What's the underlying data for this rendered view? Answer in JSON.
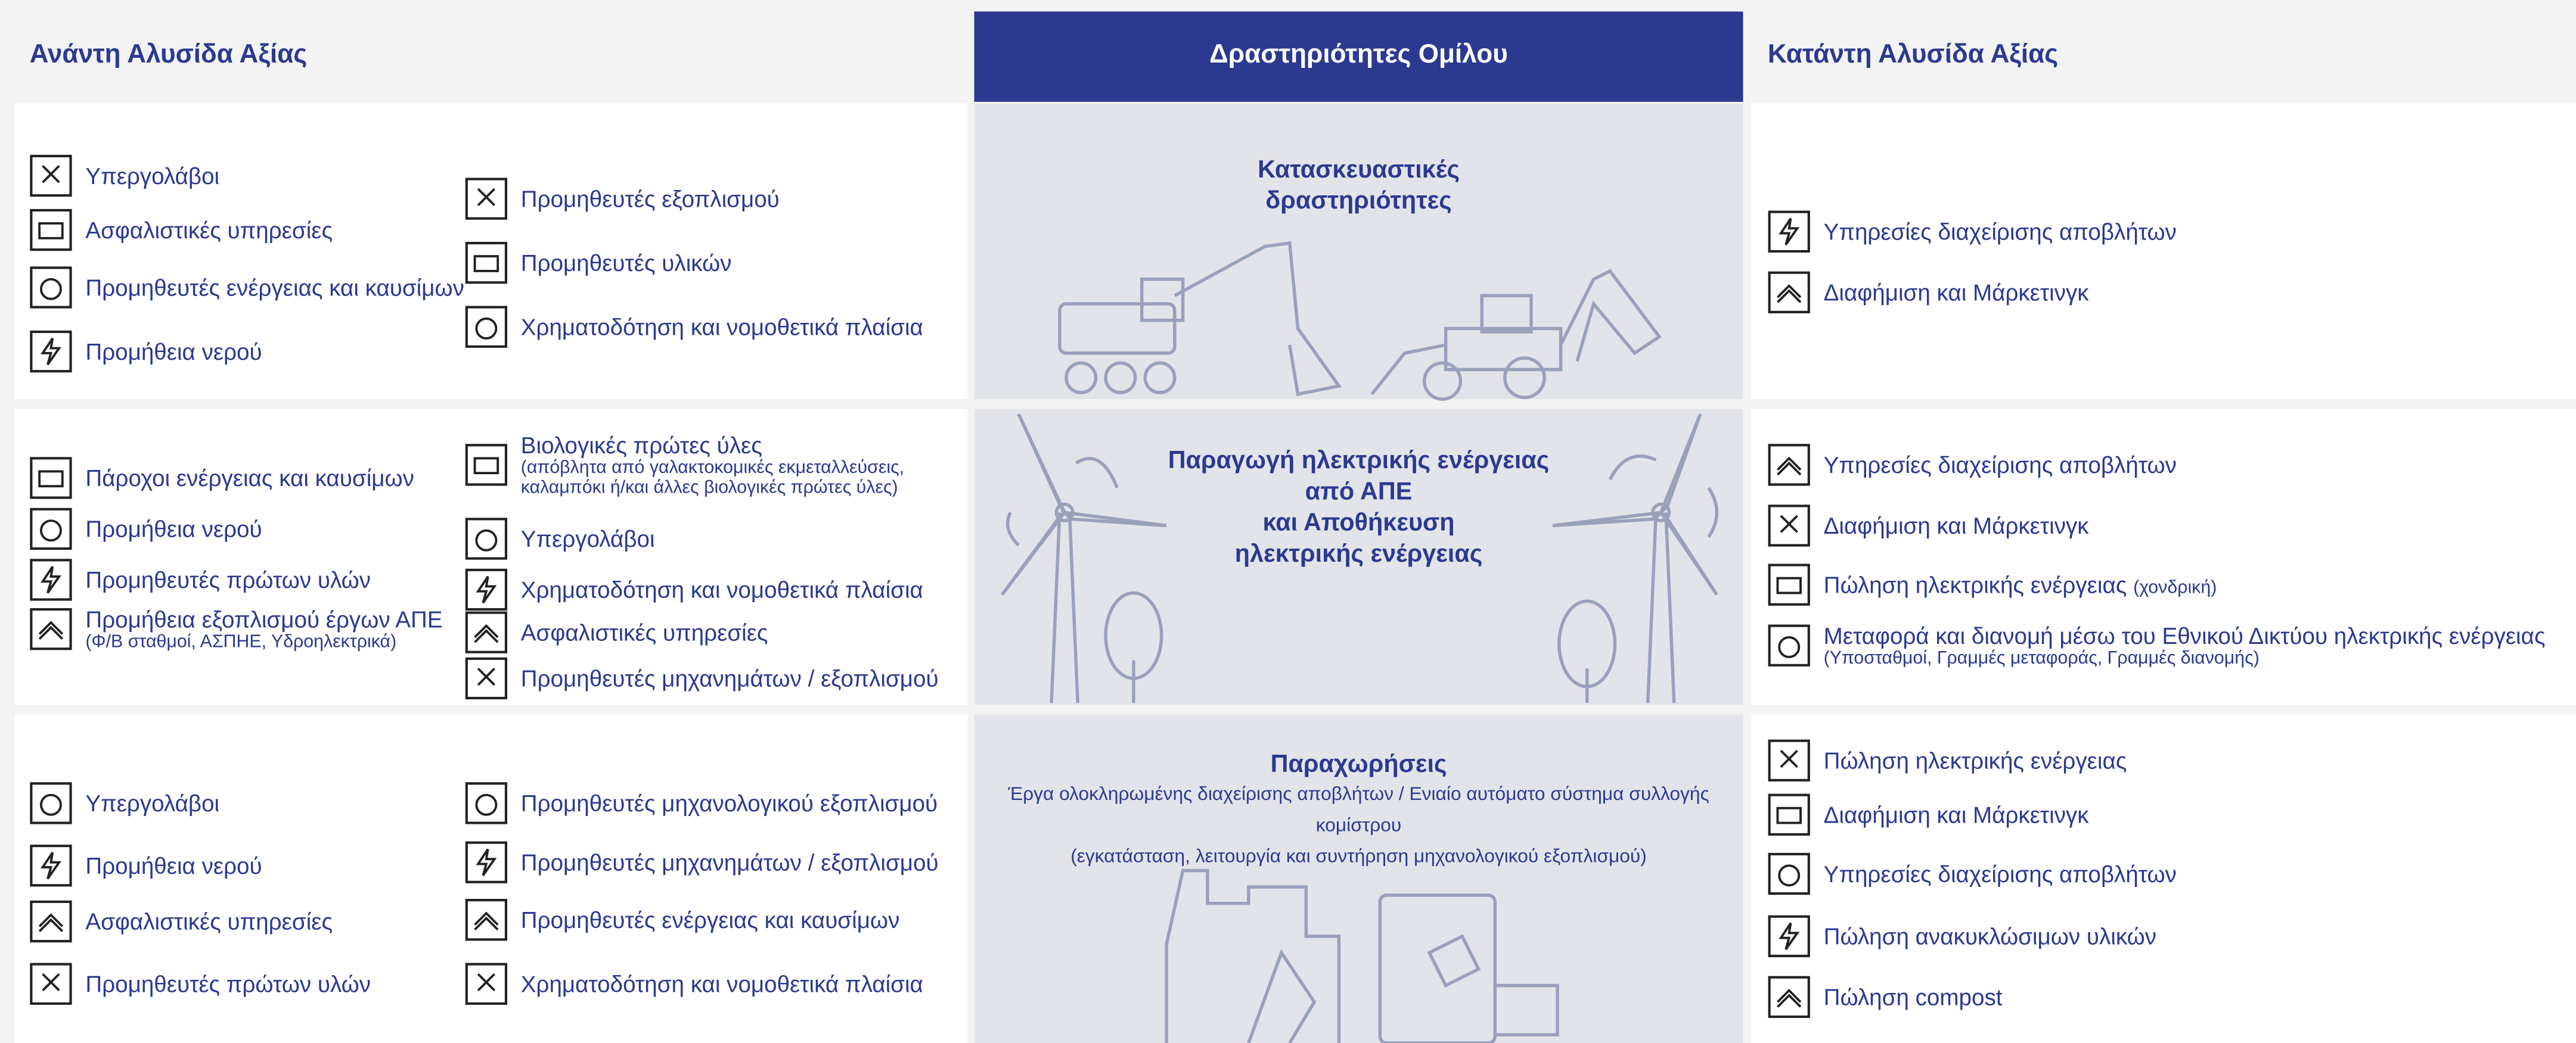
{
  "header": {
    "upstream": "Ανάντη Αλυσίδα Αξίας",
    "group": "Δραστηριότητες Ομίλου",
    "downstream": "Κατάντη Αλυσίδα Αξίας"
  },
  "rows": [
    {
      "upstream": [
        [
          {
            "label": "Υπεργολάβοι"
          },
          {
            "label": "Ασφαλιστικές υπηρεσίες"
          },
          {
            "label": "Προμηθευτές ενέργειας και καυσίμων"
          },
          {
            "label": "Προμήθεια νερού"
          }
        ],
        [
          {
            "label": "Προμηθευτές εξοπλισμού"
          },
          {
            "label": "Προμηθευτές υλικών"
          },
          {
            "label": "Χρηματοδότηση και νομοθετικά πλαίσια"
          }
        ]
      ],
      "activity": {
        "title_lines": [
          "Κατασκευαστικές",
          "δραστηριότητες"
        ]
      },
      "downstream": [
        {
          "label": "Υπηρεσίες διαχείρισης αποβλήτων"
        },
        {
          "label": "Διαφήμιση και Μάρκετινγκ"
        }
      ]
    },
    {
      "upstream": [
        [
          {
            "label": "Πάροχοι ενέργειας και καυσίμων"
          },
          {
            "label": "Προμήθεια νερού"
          },
          {
            "label": "Προμηθευτές πρώτων υλών"
          },
          {
            "label": "Προμήθεια εξοπλισμού έργων ΑΠΕ",
            "note_lines": [
              "(Φ/Β σταθμοί, ΑΣΠΗΕ, Υδροηλεκτρικά)"
            ]
          }
        ],
        [
          {
            "label": "Βιολογικές πρώτες ύλες",
            "note_lines": [
              "(απόβλητα από γαλακτοκομικές εκμεταλλεύσεις,",
              "καλαμπόκι ή/και άλλες βιολογικές πρώτες ύλες)"
            ]
          },
          {
            "label": "Υπεργολάβοι"
          },
          {
            "label": "Χρηματοδότηση και νομοθετικά πλαίσια"
          },
          {
            "label": "Ασφαλιστικές υπηρεσίες"
          },
          {
            "label": "Προμηθευτές μηχανημάτων / εξοπλισμού"
          }
        ]
      ],
      "activity": {
        "title_lines": [
          "Παραγωγή ηλεκτρικής ενέργειας",
          "από ΑΠΕ",
          "και Αποθήκευση",
          "ηλεκτρικής ενέργειας"
        ]
      },
      "downstream": [
        {
          "label": "Υπηρεσίες διαχείρισης αποβλήτων"
        },
        {
          "label": "Διαφήμιση και Μάρκετινγκ"
        },
        {
          "label": "Πώληση ηλεκτρικής ενέργειας",
          "inline_note": "(χονδρική)"
        },
        {
          "label": "Μεταφορά και διανομή μέσω του Εθνικού Δικτύου ηλεκτρικής ενέργειας",
          "note_lines": [
            "(Υποσταθμοί, Γραμμές μεταφοράς, Γραμμές διανομής)"
          ]
        }
      ]
    },
    {
      "upstream": [
        [
          {
            "label": "Υπεργολάβοι"
          },
          {
            "label": "Προμήθεια νερού"
          },
          {
            "label": "Ασφαλιστικές υπηρεσίες"
          },
          {
            "label": "Προμηθευτές πρώτων υλών"
          }
        ],
        [
          {
            "label": "Προμηθευτές μηχανολογικού εξοπλισμού"
          },
          {
            "label": "Προμηθευτές μηχανημάτων / εξοπλισμού"
          },
          {
            "label": "Προμηθευτές ενέργειας και καυσίμων"
          },
          {
            "label": "Χρηματοδότηση και νομοθετικά πλαίσια"
          }
        ]
      ],
      "activity": {
        "title_lines": [
          "Παραχωρήσεις"
        ],
        "description_lines": [
          "Έργα ολοκληρωμένης διαχείρισης αποβλήτων / Ενιαίο αυτόματο σύστημα συλλογής κομίστρου",
          "(εγκατάσταση, λειτουργία και συντήρηση μηχανολογικού εξοπλισμού)"
        ]
      },
      "downstream": [
        {
          "label": "Πώληση ηλεκτρικής ενέργειας"
        },
        {
          "label": "Διαφήμιση και Μάρκετινγκ"
        },
        {
          "label": "Υπηρεσίες διαχείρισης αποβλήτων"
        },
        {
          "label": "Πώληση ανακυκλώσιμων υλικών"
        },
        {
          "label": "Πώληση compost"
        }
      ]
    }
  ]
}
